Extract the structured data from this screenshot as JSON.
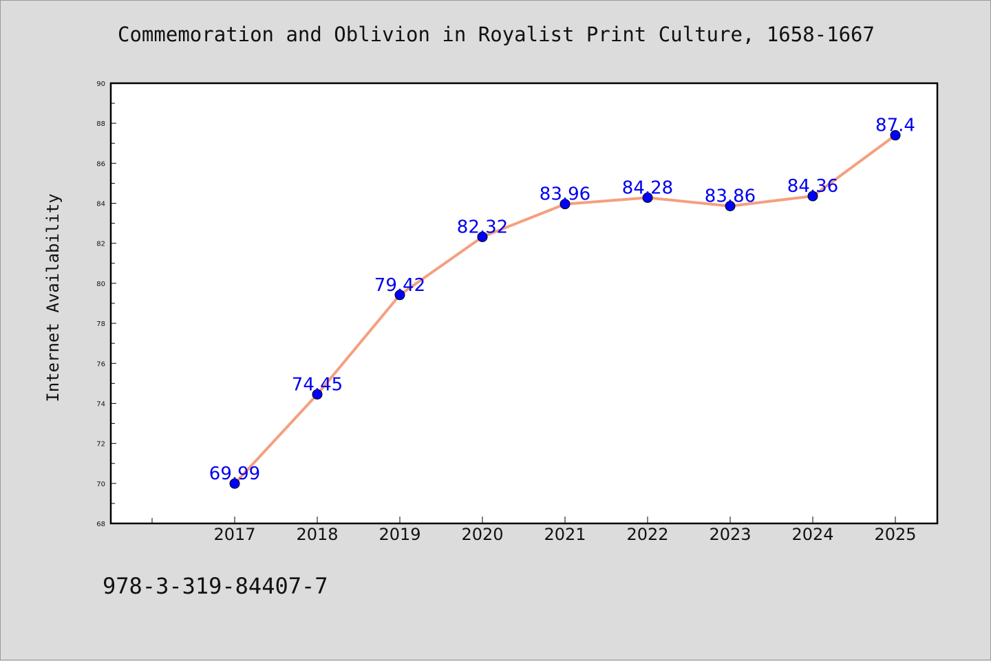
{
  "page": {
    "background": "#dcdcdc",
    "footer_code": "978-3-319-84407-7"
  },
  "chart_data": {
    "type": "line",
    "title": "Commemoration and Oblivion in Royalist Print Culture, 1658-1667",
    "xlabel": "",
    "ylabel": "Internet Availability",
    "categories": [
      "2017",
      "2018",
      "2019",
      "2020",
      "2021",
      "2022",
      "2023",
      "2024",
      "2025"
    ],
    "series": [
      {
        "values": [
          69.99,
          74.45,
          79.42,
          82.32,
          83.96,
          84.28,
          83.86,
          84.36,
          87.4
        ],
        "labels": [
          "69.99",
          "74.45",
          "79.42",
          "82.32",
          "83.96",
          "84.28",
          "83.86",
          "84.36",
          "87.4"
        ],
        "line_color": "#f4a07f",
        "marker_color": "#0000ff"
      }
    ],
    "ylim": [
      68,
      90
    ],
    "yticks": [
      "68",
      "70",
      "72",
      "74",
      "76",
      "78",
      "80",
      "82",
      "84",
      "86",
      "88",
      "90"
    ],
    "grid": false,
    "legend": "none"
  }
}
